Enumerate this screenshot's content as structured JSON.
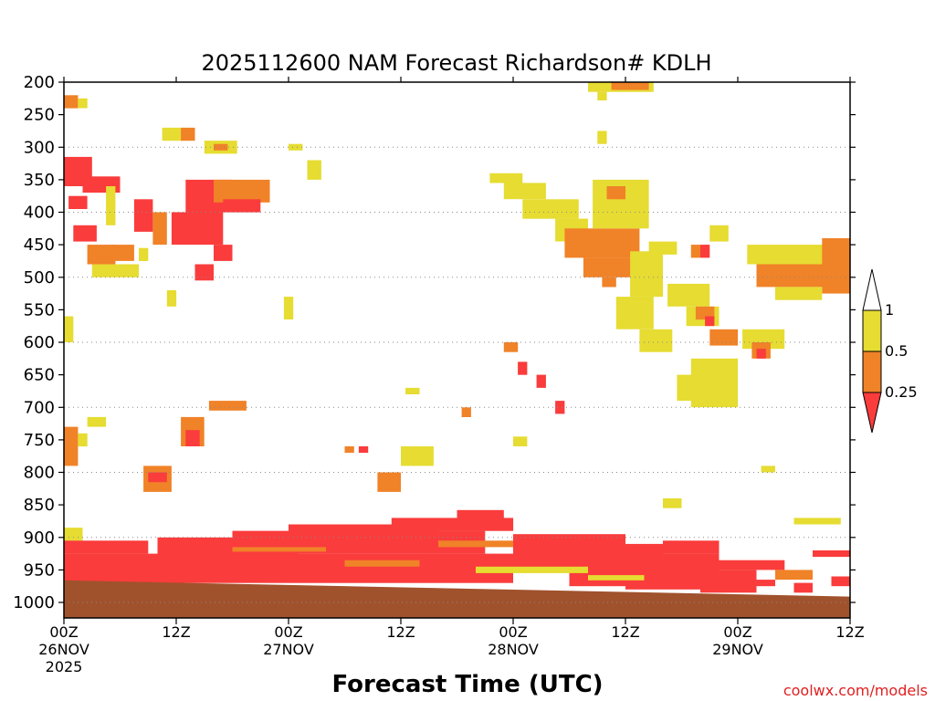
{
  "chart_data": {
    "type": "heatmap",
    "title": "2025112600 NAM Forecast Richardson# KDLH",
    "xlabel": "Forecast Time (UTC)",
    "ylabel": "",
    "credit": "coolwx.com/models",
    "x_unit": "forecast hour",
    "xlim": [
      0,
      84
    ],
    "ylim": [
      1020,
      200
    ],
    "y_ticks": [
      "200",
      "250",
      "300",
      "350",
      "400",
      "450",
      "500",
      "550",
      "600",
      "650",
      "700",
      "750",
      "800",
      "850",
      "900",
      "950",
      "1000"
    ],
    "y_tick_values": [
      200,
      250,
      300,
      350,
      400,
      450,
      500,
      550,
      600,
      650,
      700,
      750,
      800,
      850,
      900,
      950,
      1000
    ],
    "gridline_levels": [
      300,
      400,
      500,
      600,
      700,
      800,
      900,
      1000
    ],
    "x_ticks": [
      {
        "hour": 0,
        "lines": [
          "00Z",
          "26NOV",
          "2025"
        ]
      },
      {
        "hour": 12,
        "lines": [
          "12Z"
        ]
      },
      {
        "hour": 24,
        "lines": [
          "00Z",
          "27NOV"
        ]
      },
      {
        "hour": 36,
        "lines": [
          "12Z"
        ]
      },
      {
        "hour": 48,
        "lines": [
          "00Z",
          "28NOV"
        ]
      },
      {
        "hour": 60,
        "lines": [
          "12Z"
        ]
      },
      {
        "hour": 72,
        "lines": [
          "00Z",
          "29NOV"
        ]
      },
      {
        "hour": 84,
        "lines": [
          "12Z"
        ]
      }
    ],
    "colorbar": {
      "labels": [
        "1",
        "0.5",
        "0.25"
      ],
      "bins": [
        {
          "range": "> 1",
          "color": "#ffffff"
        },
        {
          "range": "0.5-1",
          "color": "#e6dc32"
        },
        {
          "range": "0.25-0.5",
          "color": "#f08228"
        },
        {
          "range": "< 0.25",
          "color": "#fa3c3c"
        }
      ]
    },
    "colors": {
      "low": "#fa3c3c",
      "mid": "#f08228",
      "high": "#e6dc32",
      "ground": "#a0522d"
    },
    "ground": {
      "surface_pressure_start": 966,
      "surface_pressure_end": 991,
      "bottom": 1020
    },
    "regions": [
      {
        "h0": 0,
        "h1": 1.5,
        "p0": 220,
        "p1": 240,
        "cat": "mid"
      },
      {
        "h0": 1.5,
        "h1": 2.5,
        "p0": 225,
        "p1": 240,
        "cat": "high"
      },
      {
        "h0": 0,
        "h1": 3,
        "p0": 315,
        "p1": 360,
        "cat": "low"
      },
      {
        "h0": 2,
        "h1": 6,
        "p0": 345,
        "p1": 370,
        "cat": "low"
      },
      {
        "h0": 0.5,
        "h1": 2.5,
        "p0": 375,
        "p1": 395,
        "cat": "low"
      },
      {
        "h0": 1,
        "h1": 3.5,
        "p0": 420,
        "p1": 445,
        "cat": "low"
      },
      {
        "h0": 2.5,
        "h1": 5.5,
        "p0": 450,
        "p1": 480,
        "cat": "mid"
      },
      {
        "h0": 3,
        "h1": 8,
        "p0": 480,
        "p1": 500,
        "cat": "high"
      },
      {
        "h0": 5,
        "h1": 7.5,
        "p0": 450,
        "p1": 475,
        "cat": "mid"
      },
      {
        "h0": 4.5,
        "h1": 5.5,
        "p0": 360,
        "p1": 420,
        "cat": "high"
      },
      {
        "h0": 7.5,
        "h1": 9.5,
        "p0": 380,
        "p1": 430,
        "cat": "low"
      },
      {
        "h0": 8,
        "h1": 9,
        "p0": 455,
        "p1": 475,
        "cat": "high"
      },
      {
        "h0": 9.5,
        "h1": 11,
        "p0": 400,
        "p1": 450,
        "cat": "mid"
      },
      {
        "h0": 11.5,
        "h1": 17,
        "p0": 400,
        "p1": 450,
        "cat": "low"
      },
      {
        "h0": 13,
        "h1": 18,
        "p0": 350,
        "p1": 400,
        "cat": "low"
      },
      {
        "h0": 16,
        "h1": 22,
        "p0": 350,
        "p1": 385,
        "cat": "mid"
      },
      {
        "h0": 17,
        "h1": 21,
        "p0": 380,
        "p1": 400,
        "cat": "low"
      },
      {
        "h0": 16,
        "h1": 18,
        "p0": 450,
        "p1": 475,
        "cat": "low"
      },
      {
        "h0": 14,
        "h1": 16,
        "p0": 480,
        "p1": 505,
        "cat": "low"
      },
      {
        "h0": 10.5,
        "h1": 13,
        "p0": 270,
        "p1": 290,
        "cat": "high"
      },
      {
        "h0": 12.5,
        "h1": 14,
        "p0": 270,
        "p1": 290,
        "cat": "mid"
      },
      {
        "h0": 15,
        "h1": 18.5,
        "p0": 290,
        "p1": 310,
        "cat": "high"
      },
      {
        "h0": 16,
        "h1": 17.5,
        "p0": 295,
        "p1": 305,
        "cat": "mid"
      },
      {
        "h0": 24,
        "h1": 25.5,
        "p0": 295,
        "p1": 305,
        "cat": "high"
      },
      {
        "h0": 26,
        "h1": 27.5,
        "p0": 320,
        "p1": 350,
        "cat": "high"
      },
      {
        "h0": 23.5,
        "h1": 24.5,
        "p0": 530,
        "p1": 565,
        "cat": "high"
      },
      {
        "h0": 11,
        "h1": 12,
        "p0": 520,
        "p1": 545,
        "cat": "high"
      },
      {
        "h0": 0,
        "h1": 1,
        "p0": 560,
        "p1": 600,
        "cat": "high"
      },
      {
        "h0": 0,
        "h1": 1.5,
        "p0": 730,
        "p1": 790,
        "cat": "mid"
      },
      {
        "h0": 1.5,
        "h1": 2.5,
        "p0": 740,
        "p1": 760,
        "cat": "high"
      },
      {
        "h0": 2.5,
        "h1": 4.5,
        "p0": 715,
        "p1": 730,
        "cat": "high"
      },
      {
        "h0": 12.5,
        "h1": 15,
        "p0": 715,
        "p1": 760,
        "cat": "mid"
      },
      {
        "h0": 13,
        "h1": 14.5,
        "p0": 735,
        "p1": 760,
        "cat": "low"
      },
      {
        "h0": 15.5,
        "h1": 19.5,
        "p0": 690,
        "p1": 705,
        "cat": "mid"
      },
      {
        "h0": 8.5,
        "h1": 11.5,
        "p0": 790,
        "p1": 830,
        "cat": "mid"
      },
      {
        "h0": 9,
        "h1": 11,
        "p0": 800,
        "p1": 815,
        "cat": "low"
      },
      {
        "h0": 36,
        "h1": 39.5,
        "p0": 760,
        "p1": 790,
        "cat": "high"
      },
      {
        "h0": 33.5,
        "h1": 36,
        "p0": 800,
        "p1": 830,
        "cat": "mid"
      },
      {
        "h0": 30,
        "h1": 31,
        "p0": 760,
        "p1": 770,
        "cat": "mid"
      },
      {
        "h0": 31.5,
        "h1": 32.5,
        "p0": 760,
        "p1": 770,
        "cat": "low"
      },
      {
        "h0": 42.5,
        "h1": 43.5,
        "p0": 700,
        "p1": 715,
        "cat": "mid"
      },
      {
        "h0": 36.5,
        "h1": 38,
        "p0": 670,
        "p1": 680,
        "cat": "high"
      },
      {
        "h0": 45.5,
        "h1": 49,
        "p0": 340,
        "p1": 355,
        "cat": "high"
      },
      {
        "h0": 47,
        "h1": 51.5,
        "p0": 355,
        "p1": 380,
        "cat": "high"
      },
      {
        "h0": 49,
        "h1": 55,
        "p0": 380,
        "p1": 410,
        "cat": "high"
      },
      {
        "h0": 52.5,
        "h1": 56,
        "p0": 410,
        "p1": 445,
        "cat": "high"
      },
      {
        "h0": 53.5,
        "h1": 61.5,
        "p0": 425,
        "p1": 470,
        "cat": "mid"
      },
      {
        "h0": 55.5,
        "h1": 61.5,
        "p0": 470,
        "p1": 500,
        "cat": "mid"
      },
      {
        "h0": 57.5,
        "h1": 59,
        "p0": 500,
        "p1": 515,
        "cat": "mid"
      },
      {
        "h0": 56.5,
        "h1": 62.5,
        "p0": 350,
        "p1": 425,
        "cat": "high"
      },
      {
        "h0": 58,
        "h1": 60,
        "p0": 360,
        "p1": 380,
        "cat": "mid"
      },
      {
        "h0": 60.5,
        "h1": 64,
        "p0": 460,
        "p1": 530,
        "cat": "high"
      },
      {
        "h0": 59,
        "h1": 63,
        "p0": 530,
        "p1": 580,
        "cat": "high"
      },
      {
        "h0": 61.5,
        "h1": 65,
        "p0": 580,
        "p1": 615,
        "cat": "high"
      },
      {
        "h0": 62.5,
        "h1": 65.5,
        "p0": 445,
        "p1": 465,
        "cat": "high"
      },
      {
        "h0": 64.5,
        "h1": 69,
        "p0": 510,
        "p1": 545,
        "cat": "high"
      },
      {
        "h0": 66.5,
        "h1": 70,
        "p0": 545,
        "p1": 575,
        "cat": "high"
      },
      {
        "h0": 67.5,
        "h1": 69.5,
        "p0": 545,
        "p1": 565,
        "cat": "mid"
      },
      {
        "h0": 68.5,
        "h1": 69.5,
        "p0": 560,
        "p1": 575,
        "cat": "low"
      },
      {
        "h0": 69,
        "h1": 72,
        "p0": 580,
        "p1": 605,
        "cat": "mid"
      },
      {
        "h0": 72.5,
        "h1": 77,
        "p0": 580,
        "p1": 610,
        "cat": "high"
      },
      {
        "h0": 73.5,
        "h1": 75.5,
        "p0": 600,
        "p1": 625,
        "cat": "mid"
      },
      {
        "h0": 74,
        "h1": 75,
        "p0": 610,
        "p1": 625,
        "cat": "low"
      },
      {
        "h0": 67,
        "h1": 72,
        "p0": 625,
        "p1": 700,
        "cat": "high"
      },
      {
        "h0": 65.5,
        "h1": 67.5,
        "p0": 650,
        "p1": 690,
        "cat": "high"
      },
      {
        "h0": 69,
        "h1": 71,
        "p0": 420,
        "p1": 445,
        "cat": "high"
      },
      {
        "h0": 67,
        "h1": 68,
        "p0": 450,
        "p1": 470,
        "cat": "mid"
      },
      {
        "h0": 68,
        "h1": 69,
        "p0": 450,
        "p1": 470,
        "cat": "low"
      },
      {
        "h0": 73,
        "h1": 84,
        "p0": 450,
        "p1": 480,
        "cat": "high"
      },
      {
        "h0": 74,
        "h1": 84,
        "p0": 480,
        "p1": 515,
        "cat": "mid"
      },
      {
        "h0": 81,
        "h1": 84,
        "p0": 440,
        "p1": 525,
        "cat": "mid"
      },
      {
        "h0": 76,
        "h1": 81,
        "p0": 515,
        "p1": 535,
        "cat": "high"
      },
      {
        "h0": 56,
        "h1": 63,
        "p0": 200,
        "p1": 215,
        "cat": "high"
      },
      {
        "h0": 58.5,
        "h1": 62.5,
        "p0": 200,
        "p1": 212,
        "cat": "mid"
      },
      {
        "h0": 57,
        "h1": 58,
        "p0": 215,
        "p1": 228,
        "cat": "high"
      },
      {
        "h0": 57,
        "h1": 58,
        "p0": 275,
        "p1": 295,
        "cat": "high"
      },
      {
        "h0": 47,
        "h1": 48.5,
        "p0": 600,
        "p1": 615,
        "cat": "mid"
      },
      {
        "h0": 48.5,
        "h1": 49.5,
        "p0": 630,
        "p1": 650,
        "cat": "low"
      },
      {
        "h0": 50.5,
        "h1": 51.5,
        "p0": 650,
        "p1": 670,
        "cat": "low"
      },
      {
        "h0": 52.5,
        "h1": 53.5,
        "p0": 690,
        "p1": 710,
        "cat": "low"
      },
      {
        "h0": 48,
        "h1": 49.5,
        "p0": 745,
        "p1": 760,
        "cat": "high"
      },
      {
        "h0": 64,
        "h1": 66,
        "p0": 840,
        "p1": 855,
        "cat": "high"
      },
      {
        "h0": 78,
        "h1": 83,
        "p0": 870,
        "p1": 880,
        "cat": "high"
      },
      {
        "h0": 74.5,
        "h1": 76,
        "p0": 790,
        "p1": 800,
        "cat": "high"
      },
      {
        "h0": 0,
        "h1": 2,
        "p0": 885,
        "p1": 905,
        "cat": "high"
      },
      {
        "h0": 0,
        "h1": 9,
        "p0": 905,
        "p1": 925,
        "cat": "low"
      },
      {
        "h0": 0,
        "h1": 48,
        "p0": 925,
        "p1": 970,
        "cat": "low"
      },
      {
        "h0": 10,
        "h1": 25,
        "p0": 900,
        "p1": 930,
        "cat": "low"
      },
      {
        "h0": 18,
        "h1": 45,
        "p0": 890,
        "p1": 925,
        "cat": "low"
      },
      {
        "h0": 24,
        "h1": 40,
        "p0": 880,
        "p1": 895,
        "cat": "low"
      },
      {
        "h0": 35,
        "h1": 48,
        "p0": 870,
        "p1": 890,
        "cat": "low"
      },
      {
        "h0": 42,
        "h1": 47,
        "p0": 858,
        "p1": 875,
        "cat": "low"
      },
      {
        "h0": 48,
        "h1": 60,
        "p0": 895,
        "p1": 950,
        "cat": "low"
      },
      {
        "h0": 54,
        "h1": 64,
        "p0": 910,
        "p1": 975,
        "cat": "low"
      },
      {
        "h0": 60,
        "h1": 70,
        "p0": 925,
        "p1": 980,
        "cat": "low"
      },
      {
        "h0": 68,
        "h1": 74,
        "p0": 950,
        "p1": 985,
        "cat": "low"
      },
      {
        "h0": 64,
        "h1": 70,
        "p0": 905,
        "p1": 925,
        "cat": "low"
      },
      {
        "h0": 70,
        "h1": 77,
        "p0": 935,
        "p1": 950,
        "cat": "low"
      },
      {
        "h0": 72,
        "h1": 76,
        "p0": 965,
        "p1": 975,
        "cat": "low"
      },
      {
        "h0": 76,
        "h1": 80,
        "p0": 950,
        "p1": 965,
        "cat": "mid"
      },
      {
        "h0": 78,
        "h1": 80,
        "p0": 970,
        "p1": 985,
        "cat": "low"
      },
      {
        "h0": 80,
        "h1": 84,
        "p0": 920,
        "p1": 930,
        "cat": "low"
      },
      {
        "h0": 82,
        "h1": 84,
        "p0": 960,
        "p1": 975,
        "cat": "low"
      },
      {
        "h0": 40,
        "h1": 48,
        "p0": 905,
        "p1": 915,
        "cat": "mid"
      },
      {
        "h0": 30,
        "h1": 38,
        "p0": 935,
        "p1": 945,
        "cat": "mid"
      },
      {
        "h0": 44,
        "h1": 56,
        "p0": 945,
        "p1": 955,
        "cat": "high"
      },
      {
        "h0": 56,
        "h1": 62,
        "p0": 958,
        "p1": 966,
        "cat": "high"
      },
      {
        "h0": 18,
        "h1": 28,
        "p0": 915,
        "p1": 922,
        "cat": "mid"
      },
      {
        "h0": 6,
        "h1": 14,
        "p0": 960,
        "p1": 966,
        "cat": "low"
      }
    ]
  }
}
